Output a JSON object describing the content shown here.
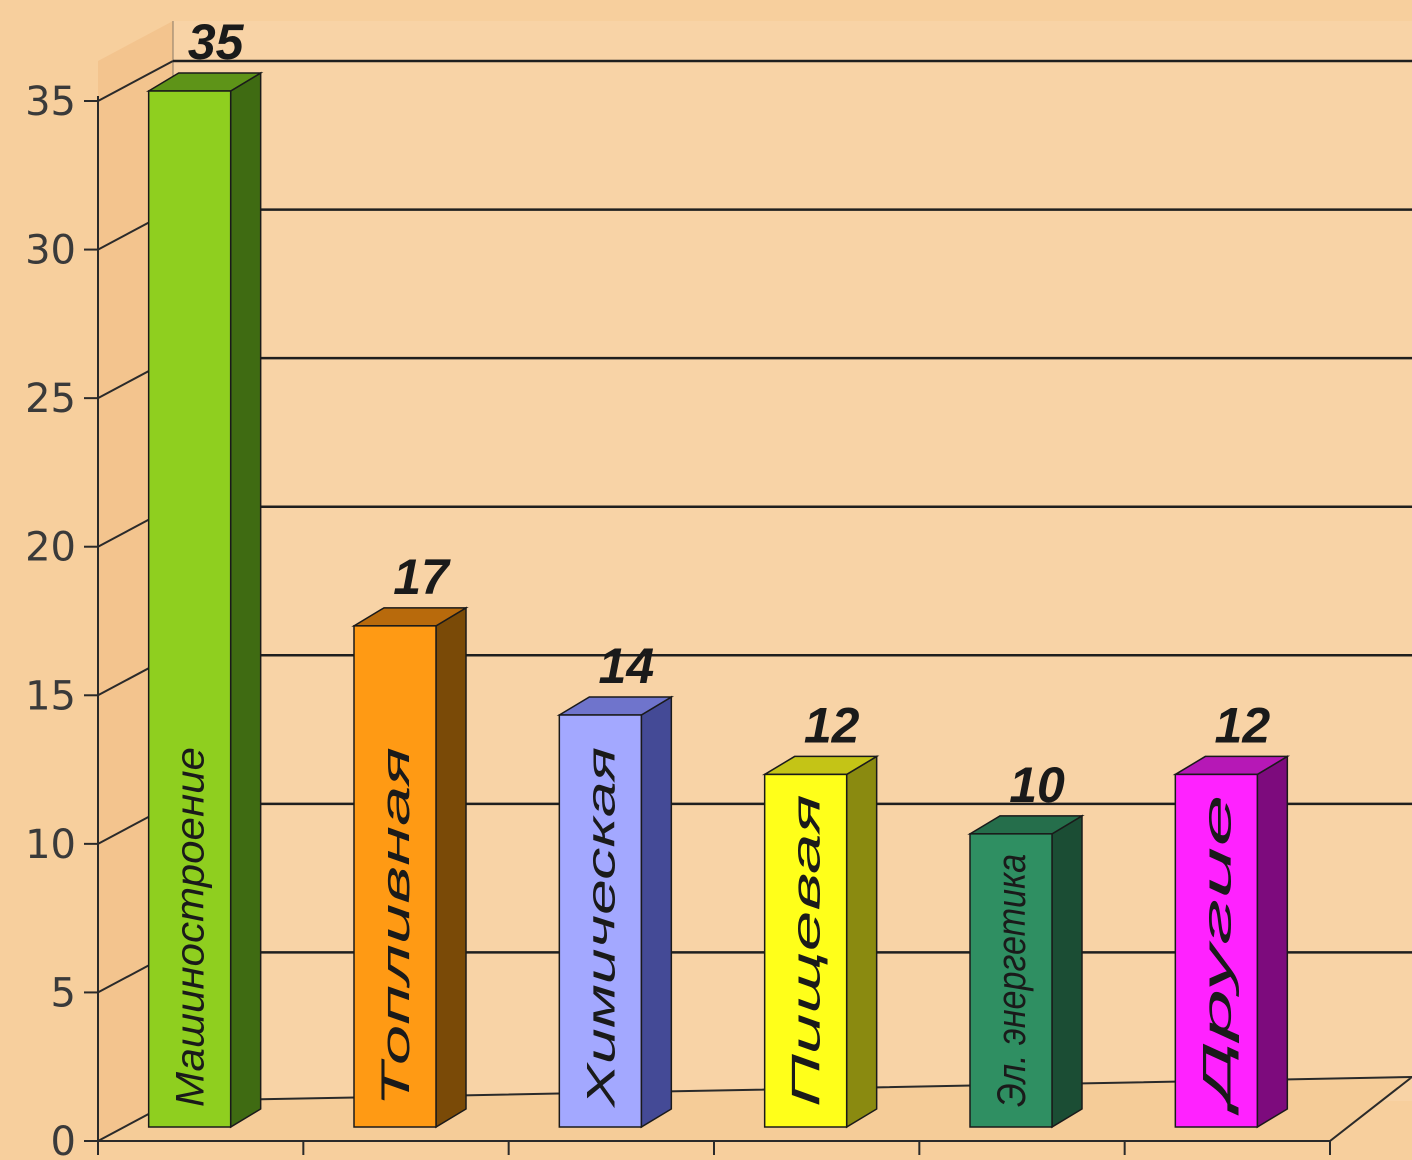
{
  "chart_data": {
    "type": "bar",
    "categories": [
      "Машиностроение",
      "Топливная",
      "Химическая",
      "Пищевая",
      "Эл. энергетика",
      "Другие"
    ],
    "values": [
      35,
      17,
      14,
      12,
      10,
      12
    ],
    "ylim": [
      0,
      35
    ],
    "yticks": [
      0,
      5,
      10,
      15,
      20,
      25,
      30,
      35
    ],
    "grid": true,
    "three_d": true,
    "colors": {
      "background": "#f7cf9d",
      "wall": "#f8d3a6",
      "bars": [
        {
          "front": "#8fcf1f",
          "side": "#3f6b12",
          "top": "#5e9418"
        },
        {
          "front": "#ff9a14",
          "side": "#7a4a07",
          "top": "#b86a0c"
        },
        {
          "front": "#a3a8ff",
          "side": "#444a96",
          "top": "#6f74cc"
        },
        {
          "front": "#ffff1a",
          "side": "#8a8a10",
          "top": "#c4c416"
        },
        {
          "front": "#2f8f62",
          "side": "#1b4d34",
          "top": "#256e4b"
        },
        {
          "front": "#ff22ff",
          "side": "#7d0b7d",
          "top": "#b618b6"
        }
      ]
    }
  }
}
